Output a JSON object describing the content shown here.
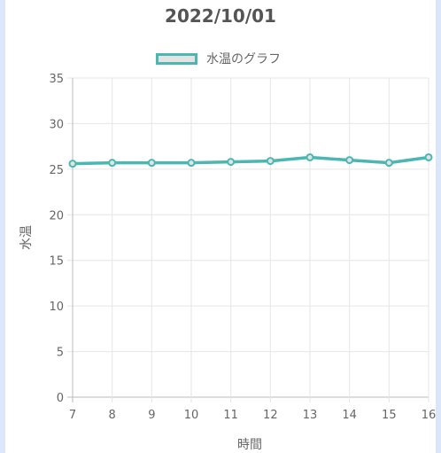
{
  "chart_data": {
    "type": "line",
    "title": "2022/10/01",
    "xlabel": "時間",
    "ylabel": "水温",
    "x": [
      7,
      8,
      9,
      10,
      11,
      12,
      13,
      14,
      15,
      16
    ],
    "series": [
      {
        "name": "水温のグラフ",
        "values": [
          25.6,
          25.7,
          25.7,
          25.7,
          25.8,
          25.9,
          26.3,
          26.0,
          25.7,
          26.3
        ],
        "color": "#4bb7b2",
        "fill": "#e3e3e3"
      }
    ],
    "yticks": [
      0,
      5,
      10,
      15,
      20,
      25,
      30,
      35
    ],
    "ylim": [
      0,
      35
    ],
    "grid": true,
    "legend_position": "top"
  }
}
